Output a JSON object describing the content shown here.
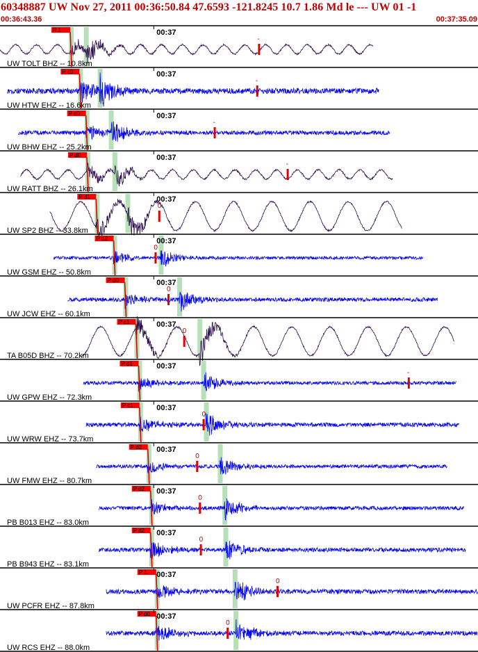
{
  "header": {
    "title": "60348887 UW Nov 27, 2011 00:36:50.84    47.6593 -121.8245 10.7 1.86 Md le --- UW 01   -1",
    "time_start": "00:36:43.36",
    "time_end": "00:37:35.09"
  },
  "chart_data": {
    "type": "seismogram-record-section",
    "event_id": "60348887",
    "network": "UW",
    "origin_time": "Nov 27, 2011 00:36:50.84",
    "latitude": 47.6593,
    "longitude": -121.8245,
    "depth": 10.7,
    "magnitude": 1.86,
    "magnitude_type": "Md",
    "window_start": "00:36:43.36",
    "window_end": "00:37:35.09",
    "tick_label": "00:37",
    "colors": {
      "trace_broadband": "#2a0a4a",
      "trace_short_period": "#0000ff",
      "pick": "#e00000",
      "pick_window": "#b8e0b8",
      "phase_flag": "#ff0000",
      "separator": "#000000"
    },
    "traces": [
      {
        "label": "UW TOLT BHZ -- 10.8km",
        "component": "BHZ",
        "distance_km": 10.8,
        "phase": "P 1",
        "coda": "-",
        "p_arrival_s": 7.6,
        "s_arrival_s": 9.3
      },
      {
        "label": "UW HTW EHZ -- 16.6km",
        "component": "EHZ",
        "distance_km": 16.6,
        "phase": "P c0",
        "coda": "-",
        "p_arrival_s": 8.6,
        "s_arrival_s": 10.8
      },
      {
        "label": "UW BHW EHZ -- 25.2km",
        "component": "EHZ",
        "distance_km": 25.2,
        "phase": "P d0",
        "coda": "-",
        "p_arrival_s": 9.3,
        "s_arrival_s": 12.0
      },
      {
        "label": "UW RATT BHZ -- 26.1km",
        "component": "BHZ",
        "distance_km": 26.1,
        "phase": "P d0",
        "coda": "-",
        "p_arrival_s": 9.4,
        "s_arrival_s": 12.4
      },
      {
        "label": "UW SP2 BHZ -- 33.8km",
        "component": "BHZ",
        "distance_km": 33.8,
        "phase": "P d1",
        "coda": "0",
        "p_arrival_s": 10.4,
        "s_arrival_s": 13.8
      },
      {
        "label": "UW GSM EHZ -- 50.8km",
        "component": "EHZ",
        "distance_km": 50.8,
        "phase": "P d2",
        "coda": "0",
        "p_arrival_s": 12.3,
        "s_arrival_s": 17.4
      },
      {
        "label": "UW JCW EHZ -- 60.1km",
        "component": "EHZ",
        "distance_km": 60.1,
        "phase": "P d0",
        "coda": "0",
        "p_arrival_s": 13.5,
        "s_arrival_s": 19.4
      },
      {
        "label": "TA B05D BHZ -- 70.2km",
        "component": "BHZ",
        "distance_km": 70.2,
        "phase": "P c1",
        "coda": "0",
        "p_arrival_s": 14.7,
        "s_arrival_s": 21.6
      },
      {
        "label": "UW GPW EHZ -- 72.3km",
        "component": "EHZ",
        "distance_km": 72.3,
        "phase": "P d1",
        "coda": "-",
        "p_arrival_s": 15.0,
        "s_arrival_s": 22.0
      },
      {
        "label": "UW WRW EHZ -- 73.7km",
        "component": "EHZ",
        "distance_km": 73.7,
        "phase": "P c1",
        "coda": "0",
        "p_arrival_s": 15.1,
        "s_arrival_s": 22.3
      },
      {
        "label": "UW FMW EHZ -- 80.7km",
        "component": "EHZ",
        "distance_km": 80.7,
        "phase": "P d2",
        "coda": "0",
        "p_arrival_s": 16.0,
        "s_arrival_s": 23.8
      },
      {
        "label": "PB B013 EHZ -- 83.0km",
        "component": "EHZ",
        "distance_km": 83.0,
        "phase": "P d2",
        "coda": "0",
        "p_arrival_s": 16.3,
        "s_arrival_s": 24.3
      },
      {
        "label": "PB B943 EHZ -- 83.1km",
        "component": "EHZ",
        "distance_km": 83.1,
        "phase": "P d2",
        "coda": "0",
        "p_arrival_s": 16.3,
        "s_arrival_s": 24.4
      },
      {
        "label": "UW PCFR EHZ -- 87.8km",
        "component": "EHZ",
        "distance_km": 87.8,
        "phase": "P 1",
        "coda": "0",
        "p_arrival_s": 16.9,
        "s_arrival_s": 25.4
      },
      {
        "label": "UW RCS EHZ -- 88.0km",
        "component": "EHZ",
        "distance_km": 88.0,
        "phase": "P d0",
        "coda": "0",
        "p_arrival_s": 16.9,
        "s_arrival_s": 25.5
      }
    ]
  }
}
